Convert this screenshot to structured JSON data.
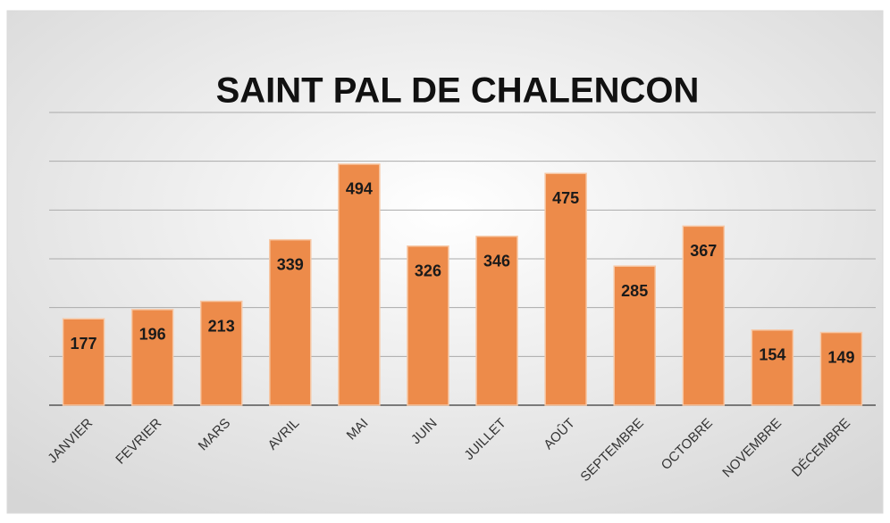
{
  "chart_data": {
    "type": "bar",
    "title": "SAINT PAL DE CHALENCON",
    "categories": [
      "JANVIER",
      "FEVRIER",
      "MARS",
      "AVRIL",
      "MAI",
      "JUIN",
      "JUILLET",
      "AOÛT",
      "SEPTEMBRE",
      "OCTOBRE",
      "NOVEMBRE",
      "DÉCEMBRE"
    ],
    "values": [
      177,
      196,
      213,
      339,
      494,
      326,
      346,
      475,
      285,
      367,
      154,
      149
    ],
    "color": "#ed8b4a",
    "ylim": [
      0,
      600
    ],
    "yticks": [
      0,
      100,
      200,
      300,
      400,
      500,
      600
    ],
    "grid": true
  }
}
